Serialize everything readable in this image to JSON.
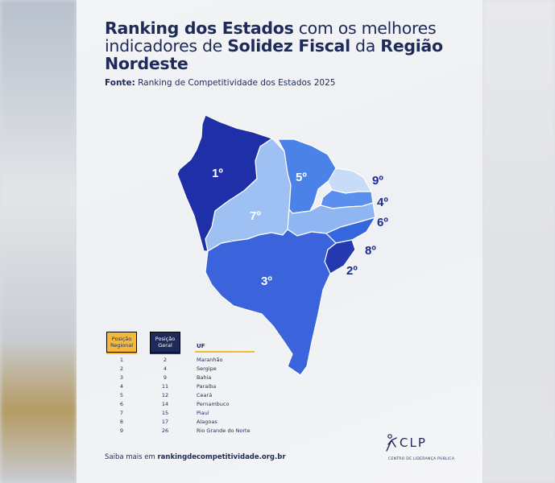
{
  "title": {
    "part1_bold": "Ranking dos Estados",
    "part2": " com os melhores indicadores de ",
    "part3_bold": "Solidez Fiscal",
    "part4": " da ",
    "part5_bold": "Região Nordeste"
  },
  "source": {
    "label": "Fonte:",
    "text": " Ranking de Competitividade dos Estados 2025"
  },
  "map": {
    "states": [
      {
        "uf": "Maranhão",
        "rank_label": "1º",
        "color": "#1f2fa8"
      },
      {
        "uf": "Piauí",
        "rank_label": "7º",
        "color": "#9fc0f3"
      },
      {
        "uf": "Ceará",
        "rank_label": "5º",
        "color": "#4a82e8"
      },
      {
        "uf": "Rio Grande do Norte",
        "rank_label": "9º",
        "color": "#c9dcf7"
      },
      {
        "uf": "Paraíba",
        "rank_label": "4º",
        "color": "#5a8fee"
      },
      {
        "uf": "Pernambuco",
        "rank_label": "6º",
        "color": "#8fb5f2"
      },
      {
        "uf": "Alagoas",
        "rank_label": "8º",
        "color": "#3566dd"
      },
      {
        "uf": "Sergipe",
        "rank_label": "2º",
        "color": "#2438b0"
      },
      {
        "uf": "Bahia",
        "rank_label": "3º",
        "color": "#3a63dc"
      }
    ]
  },
  "table": {
    "header_regional": "Posição Regional",
    "header_geral": "Posição Geral",
    "header_uf": "UF",
    "rows": [
      {
        "regional": "1",
        "geral": "2",
        "uf": "Maranhão"
      },
      {
        "regional": "2",
        "geral": "4",
        "uf": "Sergipe"
      },
      {
        "regional": "3",
        "geral": "9",
        "uf": "Bahia"
      },
      {
        "regional": "4",
        "geral": "11",
        "uf": "Paraíba"
      },
      {
        "regional": "5",
        "geral": "12",
        "uf": "Ceará"
      },
      {
        "regional": "6",
        "geral": "14",
        "uf": "Pernambuco"
      },
      {
        "regional": "7",
        "geral": "15",
        "uf": "Piauí"
      },
      {
        "regional": "8",
        "geral": "17",
        "uf": "Alagoas"
      },
      {
        "regional": "9",
        "geral": "26",
        "uf": "Rio Grande do Norte"
      }
    ]
  },
  "footer": {
    "prefix": "Saiba mais em ",
    "link": "rankingdecompetitividade.org.br"
  },
  "logo": {
    "name": "CLP",
    "subtitle": "CENTRO DE LIDERANÇA PÚBLICA"
  }
}
